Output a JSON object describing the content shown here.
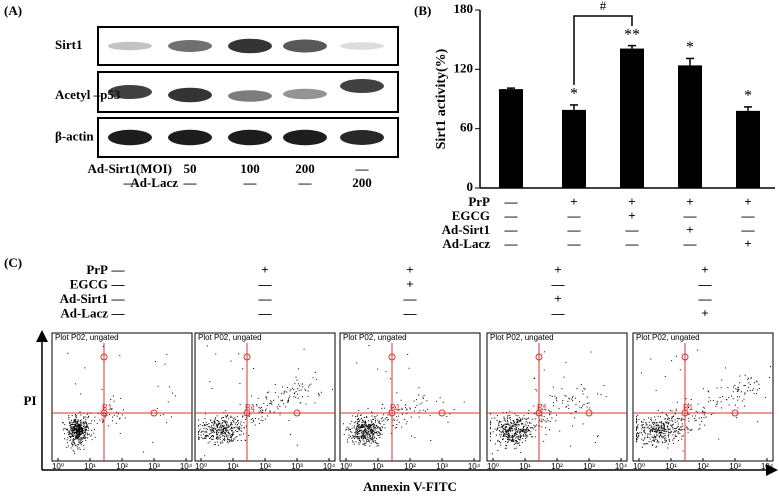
{
  "panel_a": {
    "label": "(A)",
    "blot_rows": [
      "Sirt1",
      "Acetyl –p53",
      "β-actin"
    ],
    "treatments": [
      {
        "name": "Ad-Sirt1(MOI)",
        "values": [
          null,
          "50",
          "100",
          "200",
          "—"
        ]
      },
      {
        "name": "Ad-Lacz",
        "values": [
          "—",
          "—",
          "—",
          "—",
          "200"
        ]
      }
    ]
  },
  "chart_data": {
    "type": "bar",
    "panel_label": "(B)",
    "y_label": "Sirt1 activity(%)",
    "values": [
      100,
      79,
      141,
      124,
      78
    ],
    "errors": [
      1,
      5,
      3,
      7,
      4
    ],
    "annotations": [
      null,
      "*",
      "**",
      "*",
      "*"
    ],
    "bracket_label": "#",
    "color": "#000000",
    "ylim": [
      0,
      180
    ],
    "yticks": [
      0,
      60,
      120,
      180
    ],
    "treatments": [
      {
        "name": "PrP",
        "values": [
          "—",
          "+",
          "+",
          "+",
          "+"
        ]
      },
      {
        "name": "EGCG",
        "values": [
          "—",
          "—",
          "+",
          "—",
          "—"
        ]
      },
      {
        "name": "Ad-Sirt1",
        "values": [
          "—",
          "—",
          "—",
          "+",
          "—"
        ]
      },
      {
        "name": "Ad-Lacz",
        "values": [
          "—",
          "—",
          "—",
          "—",
          "+"
        ]
      }
    ]
  },
  "panel_c": {
    "label": "(C)",
    "treatments": [
      {
        "name": "PrP",
        "values": [
          "—",
          "+",
          "+",
          "+",
          "+"
        ]
      },
      {
        "name": "EGCG",
        "values": [
          "—",
          "—",
          "+",
          "—",
          "—"
        ]
      },
      {
        "name": "Ad-Sirt1",
        "values": [
          "—",
          "—",
          "—",
          "+",
          "—"
        ]
      },
      {
        "name": "Ad-Lacz",
        "values": [
          "—",
          "—",
          "—",
          "—",
          "+"
        ]
      }
    ],
    "plot_titles": [
      "Plot P02, ungated",
      "Plot P02, ungated",
      "Plot P02, ungated",
      "Plot P02, ungated",
      "Plot P02, ungated"
    ],
    "gate_label": "R1",
    "y_label": "PI",
    "x_label": "Annexin V-FITC",
    "xticks": [
      {
        "value": 0,
        "label": "10⁰"
      },
      {
        "value": 1,
        "label": "10¹"
      },
      {
        "value": 2,
        "label": "10²"
      },
      {
        "value": 3,
        "label": "10³"
      },
      {
        "value": 4,
        "label": "10⁴"
      }
    ]
  }
}
